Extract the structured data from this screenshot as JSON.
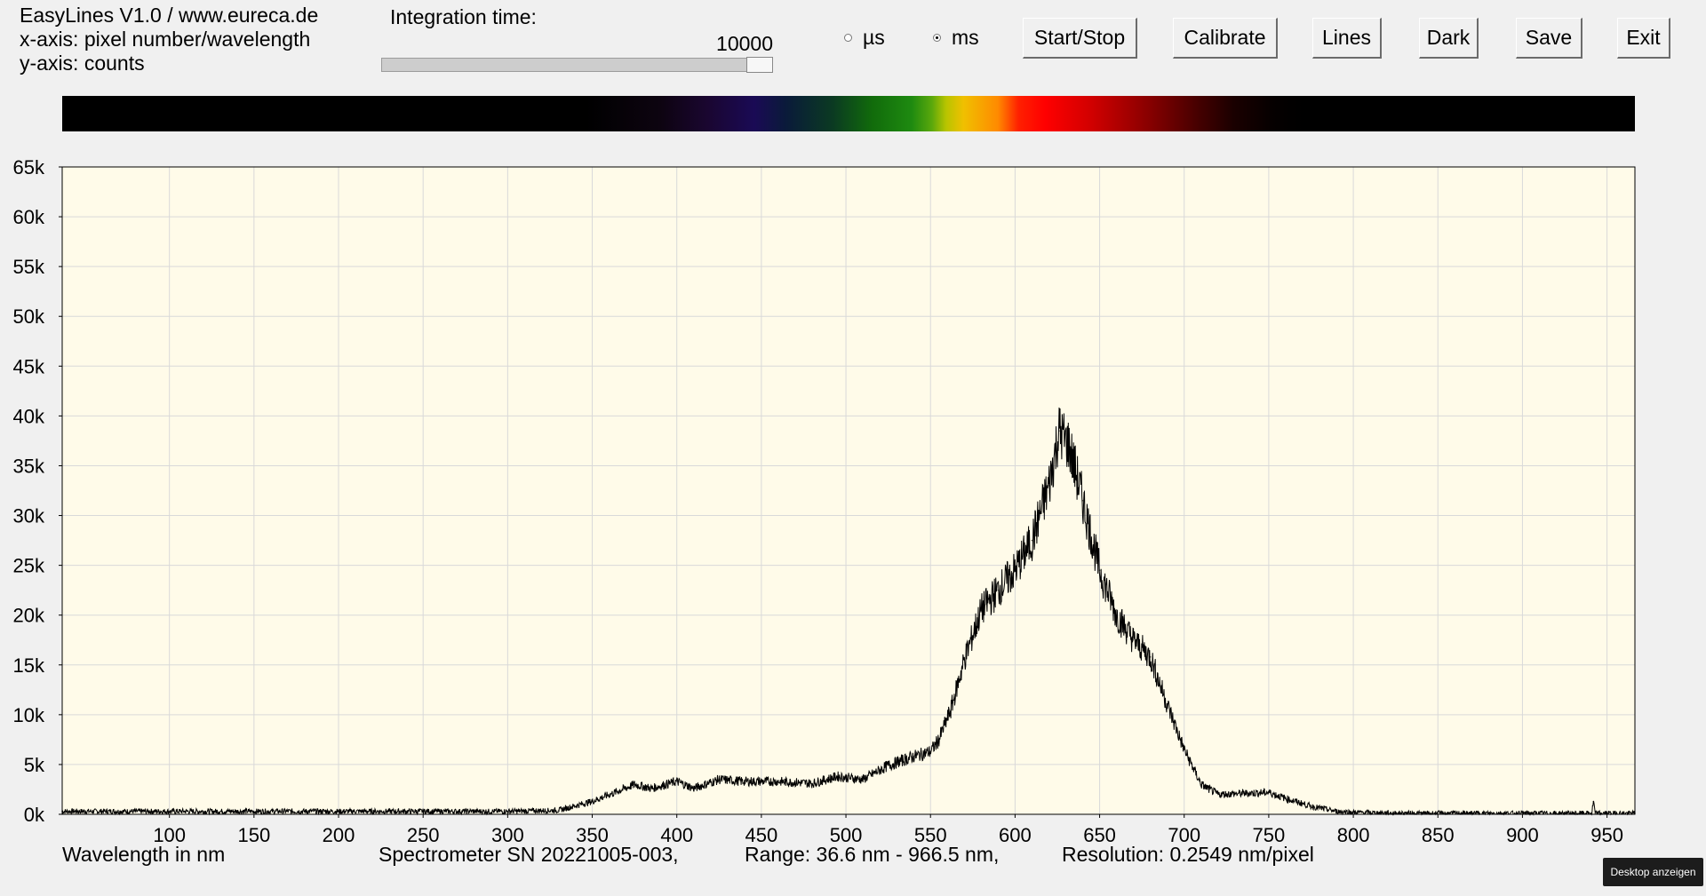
{
  "window": {
    "title_line": "EasyLines V1.0 / www.eureca.de",
    "xaxis_line": "x-axis: pixel number/wavelength",
    "yaxis_line": "y-axis: counts"
  },
  "integration": {
    "label": "Integration time:",
    "value": "10000",
    "slider_level": 1.0
  },
  "units": {
    "us_label": "µs",
    "ms_label": "ms",
    "selected": "ms"
  },
  "toolbar": {
    "start_stop": "Start/Stop",
    "calibrate": "Calibrate",
    "lines": "Lines",
    "dark": "Dark",
    "save": "Save",
    "exit": "Exit"
  },
  "status": {
    "xlabel": "Wavelength in nm",
    "spectrometer": "Spectrometer SN 20221005-003,",
    "range": "Range: 36.6 nm - 966.5 nm,",
    "resolution": "Resolution: 0.2549 nm/pixel"
  },
  "taskbar": {
    "tooltip": "Desktop anzeigen"
  },
  "colors": {
    "plot_background": "#fffbe9",
    "grid": "#d9d9d9",
    "trace": "#000000",
    "window_background": "#f0f0f0"
  },
  "chart_data": {
    "type": "line",
    "xlabel": "Wavelength in nm",
    "ylabel": "",
    "xlim": [
      36.6,
      966.5
    ],
    "ylim": [
      0,
      65000
    ],
    "x_ticks": [
      100,
      150,
      200,
      250,
      300,
      350,
      400,
      450,
      500,
      550,
      600,
      650,
      700,
      750,
      800,
      850,
      900,
      950
    ],
    "y_ticks": [
      0,
      5000,
      10000,
      15000,
      20000,
      25000,
      30000,
      35000,
      40000,
      45000,
      50000,
      55000,
      60000,
      65000
    ],
    "y_tick_labels": [
      "0k",
      "5k",
      "10k",
      "15k",
      "20k",
      "25k",
      "30k",
      "35k",
      "40k",
      "45k",
      "50k",
      "55k",
      "60k",
      "65k"
    ],
    "grid": true,
    "series": [
      {
        "x": [
          36.6,
          100,
          200,
          300,
          330,
          350,
          365,
          375,
          385,
          400,
          410,
          425,
          440,
          460,
          480,
          495,
          510,
          525,
          540,
          550,
          555,
          562,
          570,
          580,
          590,
          600,
          610,
          620,
          626,
          632,
          640,
          650,
          660,
          670,
          680,
          690,
          700,
          710,
          720,
          735,
          750,
          760,
          775,
          790,
          800,
          830,
          870,
          930,
          941,
          942,
          943,
          966.5
        ],
        "y": [
          300,
          300,
          300,
          300,
          400,
          1300,
          2300,
          3000,
          2600,
          3300,
          2600,
          3500,
          3300,
          3300,
          3100,
          3800,
          3500,
          4900,
          5800,
          6300,
          7500,
          10500,
          15500,
          20500,
          22500,
          24500,
          27500,
          33000,
          38500,
          37000,
          31500,
          24500,
          20000,
          17500,
          15800,
          11000,
          6500,
          3000,
          2000,
          2100,
          2200,
          1600,
          800,
          300,
          200,
          100,
          100,
          100,
          100,
          1300,
          100,
          100
        ]
      }
    ]
  }
}
